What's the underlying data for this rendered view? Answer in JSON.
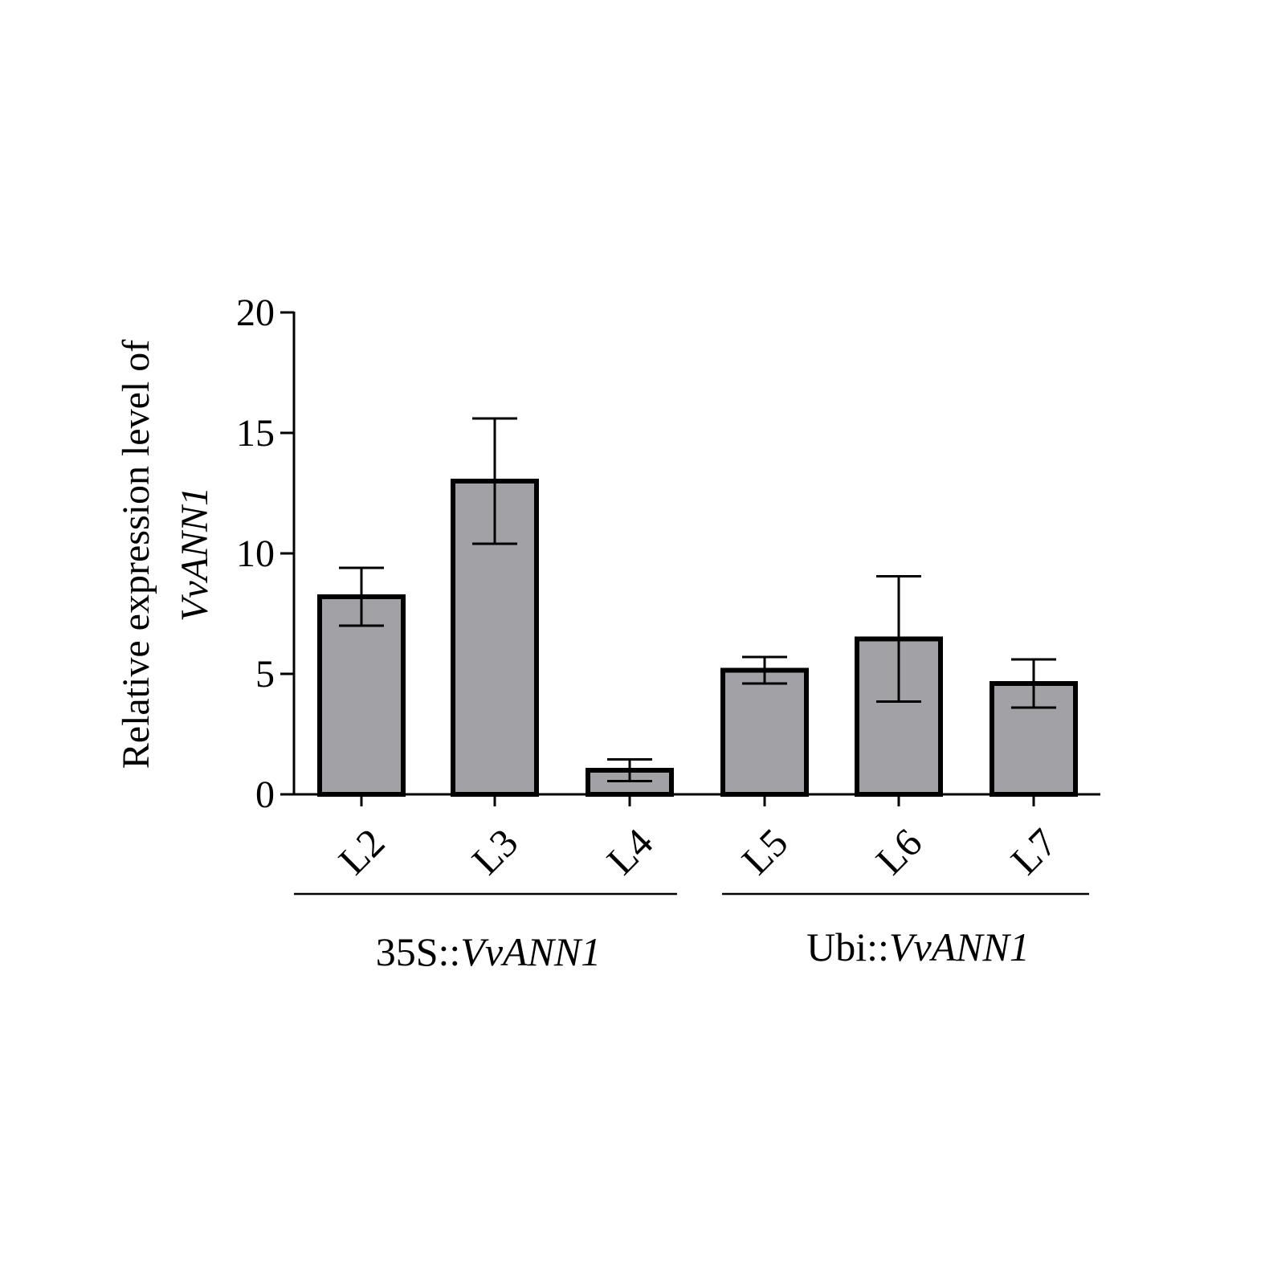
{
  "chart_data": {
    "type": "bar",
    "ylabel": {
      "line1": "Relative expression  level of",
      "line2": "VvANN1"
    },
    "ylim": [
      0,
      20
    ],
    "yticks": [
      "0",
      "5",
      "10",
      "15",
      "20"
    ],
    "categories": [
      "L2",
      "L3",
      "L4",
      "L5",
      "L6",
      "L7"
    ],
    "values": [
      8.2,
      13.0,
      1.0,
      5.15,
      6.45,
      4.6
    ],
    "errors": [
      1.2,
      2.6,
      0.45,
      0.55,
      2.6,
      1.0
    ],
    "groups": [
      {
        "prefix": "35S::",
        "gene": "VvANN1",
        "categories": [
          "L2",
          "L3",
          "L4"
        ]
      },
      {
        "prefix": "Ubi::",
        "gene": "VvANN1",
        "categories": [
          "L5",
          "L6",
          "L7"
        ]
      }
    ],
    "bar_color": "#a2a1a6",
    "grid": false
  }
}
